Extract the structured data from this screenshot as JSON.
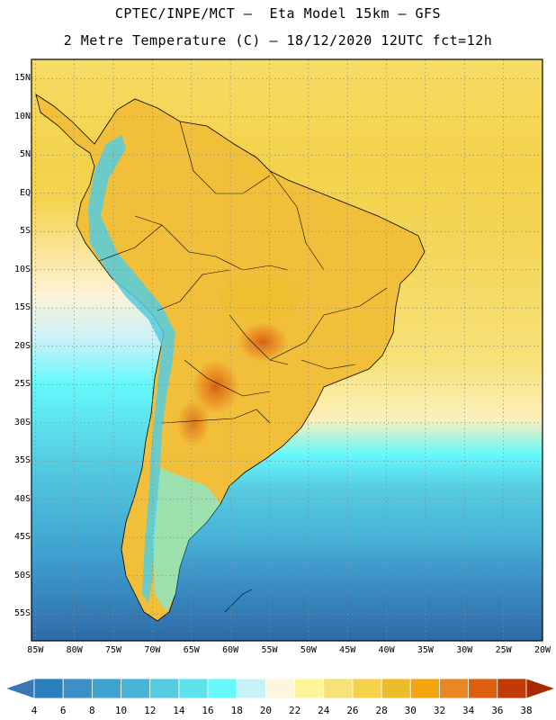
{
  "title": {
    "line1": "CPTEC/INPE/MCT –  Eta Model 15km – GFS",
    "line2": "2 Metre Temperature (C) – 18/12/2020 12UTC fct=12h"
  },
  "map": {
    "lat_labels": [
      "15N",
      "10N",
      "5N",
      "EQ",
      "5S",
      "10S",
      "15S",
      "20S",
      "25S",
      "30S",
      "35S",
      "40S",
      "45S",
      "50S",
      "55S"
    ],
    "lat_values": [
      15,
      10,
      5,
      0,
      -5,
      -10,
      -15,
      -20,
      -25,
      -30,
      -35,
      -40,
      -45,
      -50,
      -55
    ],
    "lon_labels": [
      "85W",
      "80W",
      "75W",
      "70W",
      "65W",
      "60W",
      "55W",
      "50W",
      "45W",
      "40W",
      "35W",
      "30W",
      "25W",
      "20W"
    ],
    "lon_values": [
      -85,
      -80,
      -75,
      -70,
      -65,
      -60,
      -55,
      -50,
      -45,
      -40,
      -35,
      -30,
      -25,
      -20
    ],
    "lat_range": [
      -58.5,
      17.5
    ],
    "lon_range": [
      -85.5,
      -20
    ]
  },
  "colorbar": {
    "labels": [
      "4",
      "6",
      "8",
      "10",
      "12",
      "14",
      "16",
      "18",
      "20",
      "22",
      "24",
      "26",
      "28",
      "30",
      "32",
      "34",
      "36",
      "38"
    ],
    "colors": [
      "#3a78b5",
      "#2b7fbc",
      "#3d8fc6",
      "#3fa2d0",
      "#48b4d8",
      "#55cbe0",
      "#5ee3ec",
      "#66f8fb",
      "#c8f2f8",
      "#fdf6df",
      "#fdf59a",
      "#f7e27a",
      "#f4d24a",
      "#ecbd2a",
      "#f3a40e",
      "#ea8722",
      "#dc5f10",
      "#c23a05",
      "#a72a00"
    ]
  },
  "colors": {
    "ocean_warm": "#f4d24a",
    "ocean_deep": "#2e6aa6",
    "land": "#f1bf3a"
  }
}
